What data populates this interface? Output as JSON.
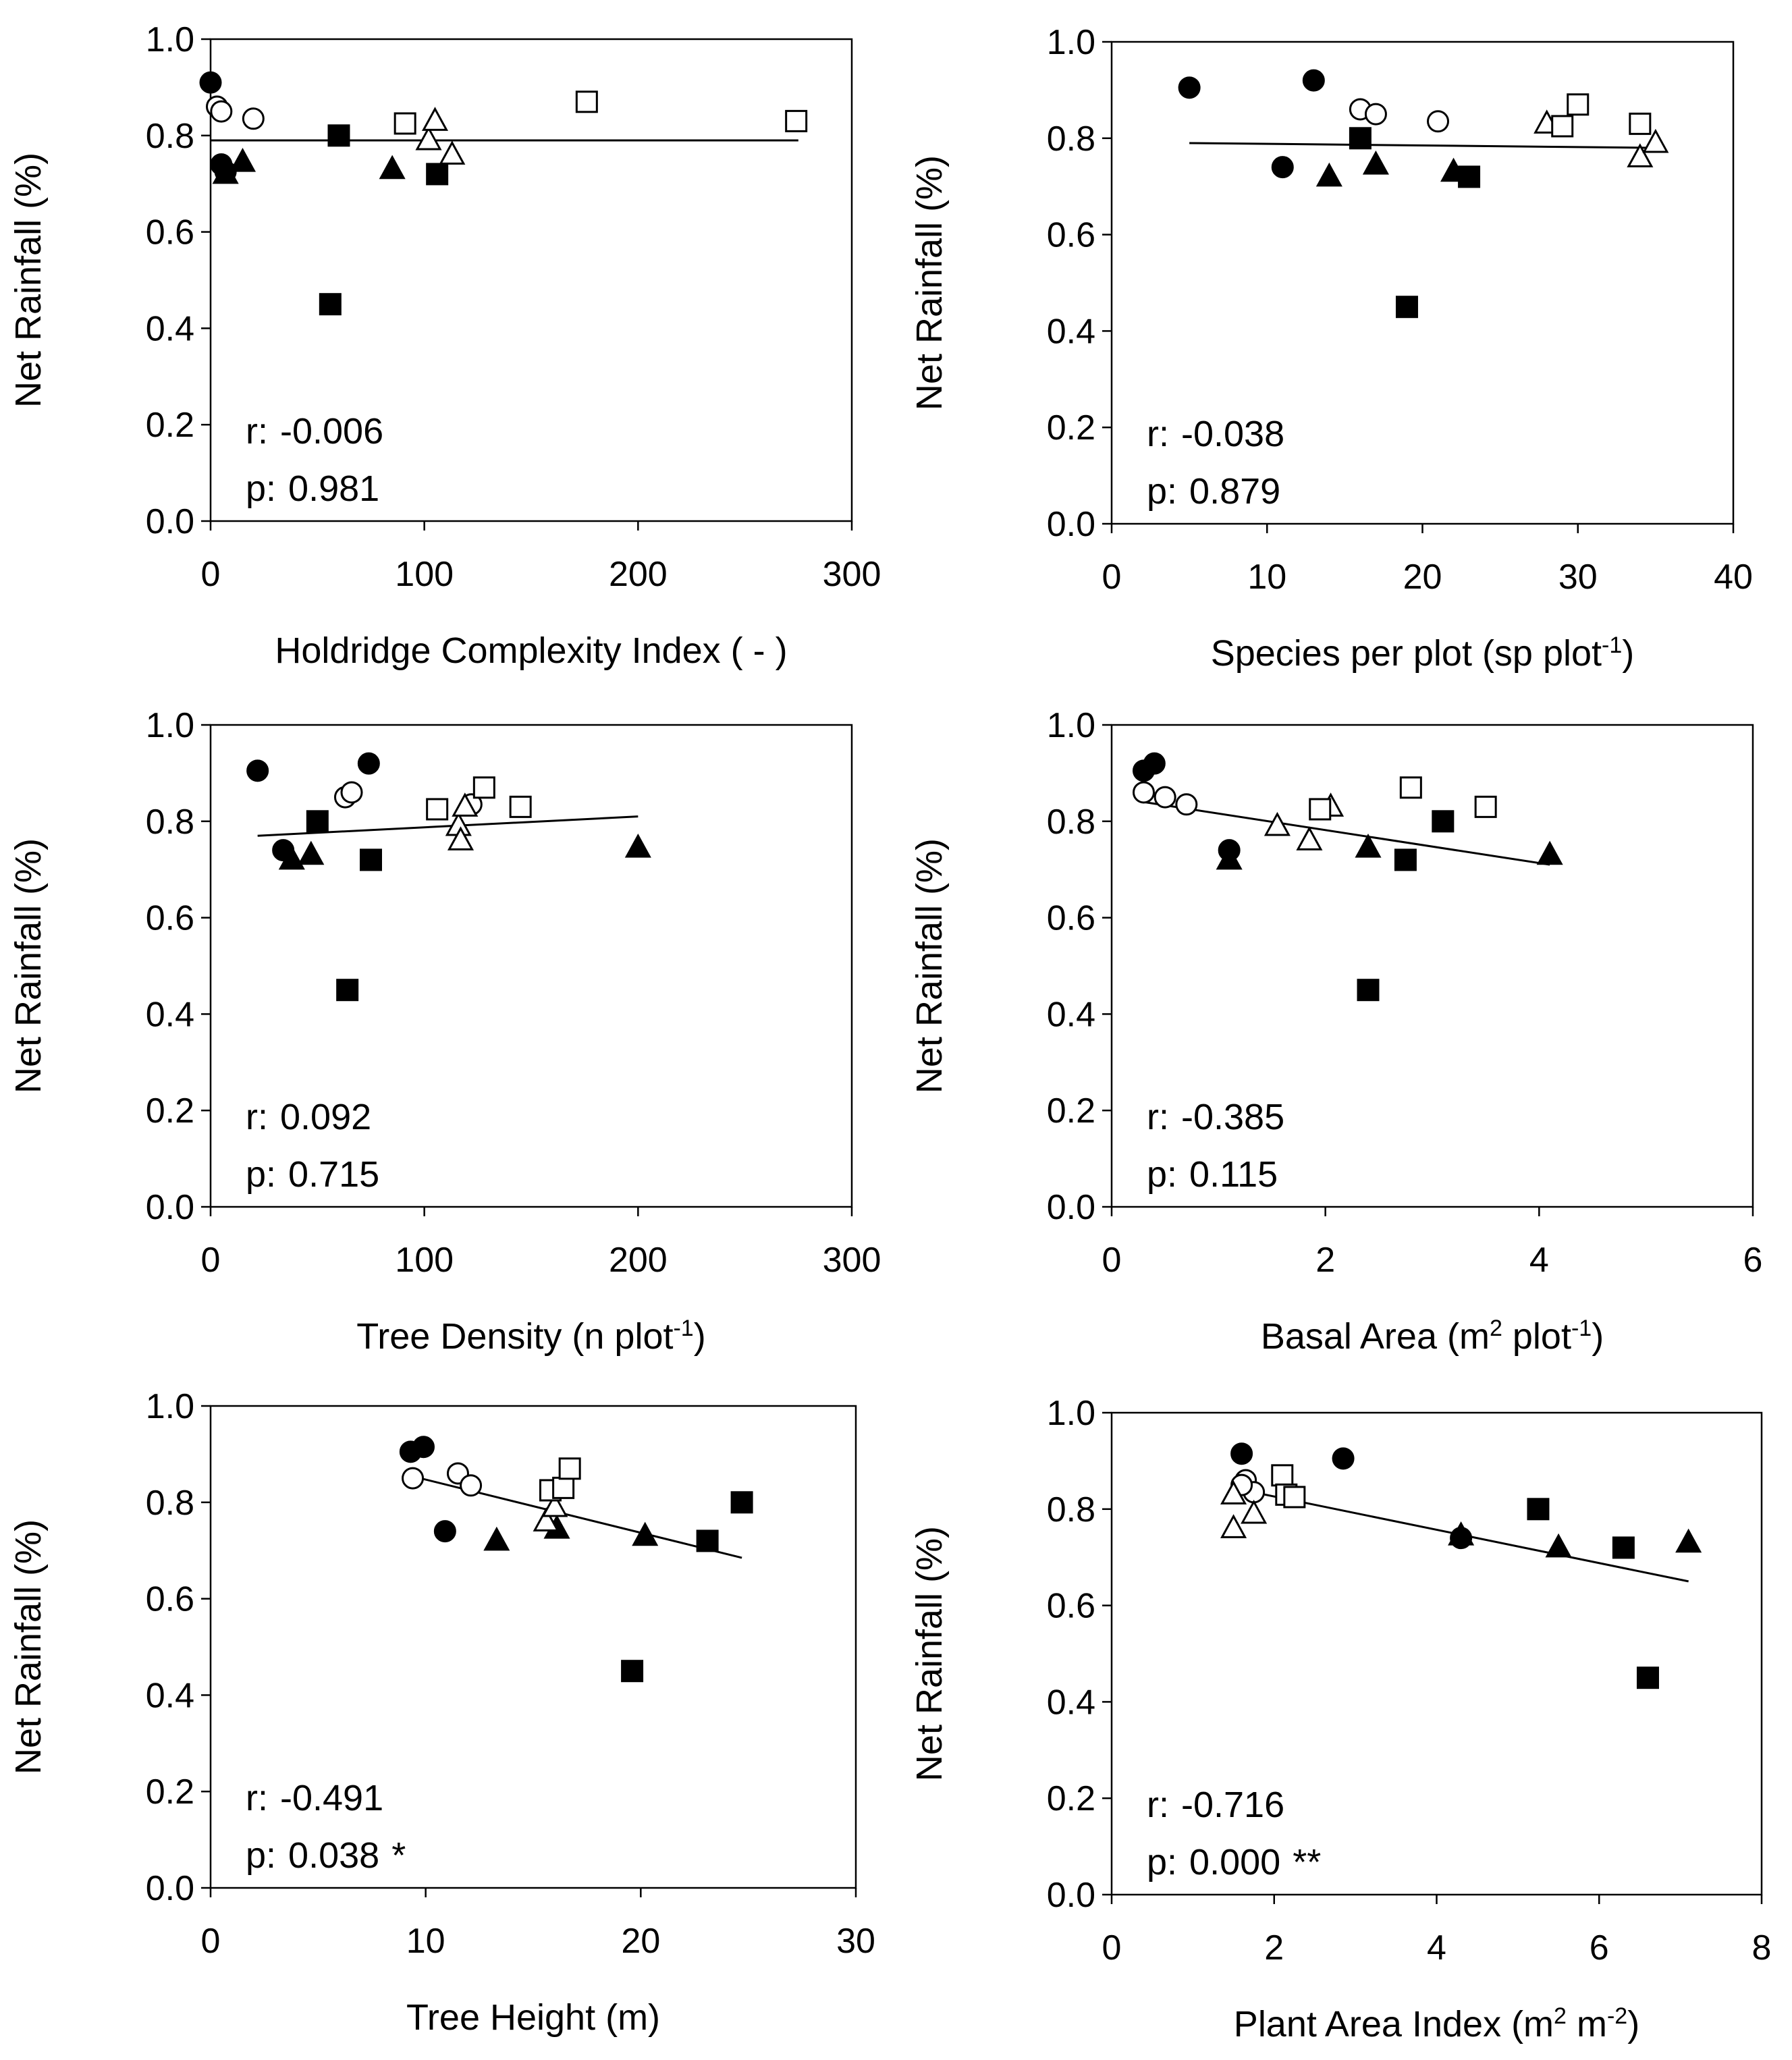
{
  "figure": {
    "y_axis_label": "Net Rainfall (%)",
    "y_ticks": [
      "0.0",
      "0.2",
      "0.4",
      "0.6",
      "0.8",
      "1.0"
    ]
  },
  "chart_data": [
    {
      "type": "scatter",
      "xlabel": "Holdridge Complexity Index ( - )",
      "ylabel": "Net Rainfall (%)",
      "xlim": [
        0,
        300
      ],
      "ylim": [
        0,
        1
      ],
      "x_ticks": [
        "0",
        "100",
        "200",
        "300"
      ],
      "r_label": "r:",
      "r_value": "-0.006",
      "p_label": "p:",
      "p_value": "0.981",
      "significance": "",
      "trend": {
        "x1": 0,
        "y1": 0.79,
        "x2": 275,
        "y2": 0.79
      },
      "series": [
        {
          "name": "filled circle",
          "marker": "circle",
          "fill": "filled",
          "points": [
            [
              0,
              0.91
            ],
            [
              5,
              0.74
            ],
            [
              7,
              0.725
            ]
          ]
        },
        {
          "name": "open circle",
          "marker": "circle",
          "fill": "open",
          "points": [
            [
              3,
              0.86
            ],
            [
              5,
              0.85
            ],
            [
              20,
              0.835
            ]
          ]
        },
        {
          "name": "filled triangle",
          "marker": "triangle",
          "fill": "filled",
          "points": [
            [
              7,
              0.72
            ],
            [
              15,
              0.745
            ],
            [
              85,
              0.73
            ]
          ]
        },
        {
          "name": "open triangle",
          "marker": "triangle",
          "fill": "open",
          "points": [
            [
              102,
              0.79
            ],
            [
              105,
              0.83
            ],
            [
              113,
              0.76
            ]
          ]
        },
        {
          "name": "filled square",
          "marker": "square",
          "fill": "filled",
          "points": [
            [
              56,
              0.45
            ],
            [
              60,
              0.8
            ],
            [
              106,
              0.72
            ]
          ]
        },
        {
          "name": "open square",
          "marker": "square",
          "fill": "open",
          "points": [
            [
              91,
              0.825
            ],
            [
              176,
              0.87
            ],
            [
              274,
              0.83
            ]
          ]
        }
      ]
    },
    {
      "type": "scatter",
      "xlabel": "Species per plot (sp plot",
      "xlabel_sup": "-1",
      "xlabel_end": ")",
      "ylabel": "Net Rainfall (%)",
      "xlim": [
        0,
        40
      ],
      "ylim": [
        0,
        1
      ],
      "x_ticks": [
        "0",
        "10",
        "20",
        "30",
        "40"
      ],
      "r_label": "r:",
      "r_value": "-0.038",
      "p_label": "p:",
      "p_value": "0.879",
      "significance": "",
      "trend": {
        "x1": 5,
        "y1": 0.79,
        "x2": 35,
        "y2": 0.78
      },
      "series": [
        {
          "name": "filled circle",
          "marker": "circle",
          "fill": "filled",
          "points": [
            [
              5,
              0.905
            ],
            [
              13,
              0.92
            ],
            [
              11,
              0.74
            ]
          ]
        },
        {
          "name": "open circle",
          "marker": "circle",
          "fill": "open",
          "points": [
            [
              16,
              0.86
            ],
            [
              17,
              0.85
            ],
            [
              21,
              0.835
            ]
          ]
        },
        {
          "name": "filled triangle",
          "marker": "triangle",
          "fill": "filled",
          "points": [
            [
              14,
              0.72
            ],
            [
              17,
              0.745
            ],
            [
              22,
              0.73
            ]
          ]
        },
        {
          "name": "open triangle",
          "marker": "triangle",
          "fill": "open",
          "points": [
            [
              28,
              0.83
            ],
            [
              34,
              0.76
            ],
            [
              35,
              0.79
            ]
          ]
        },
        {
          "name": "filled square",
          "marker": "square",
          "fill": "filled",
          "points": [
            [
              16,
              0.8
            ],
            [
              19,
              0.45
            ],
            [
              23,
              0.72
            ]
          ]
        },
        {
          "name": "open square",
          "marker": "square",
          "fill": "open",
          "points": [
            [
              29,
              0.825
            ],
            [
              30,
              0.87
            ],
            [
              34,
              0.83
            ]
          ]
        }
      ]
    },
    {
      "type": "scatter",
      "xlabel": "Tree Density (n plot",
      "xlabel_sup": "-1",
      "xlabel_end": ")",
      "ylabel": "Net Rainfall (%)",
      "xlim": [
        0,
        300
      ],
      "ylim": [
        0,
        1
      ],
      "x_ticks": [
        "0",
        "100",
        "200",
        "300"
      ],
      "r_label": "r:",
      "r_value": "0.092",
      "p_label": "p:",
      "p_value": "0.715",
      "significance": "",
      "trend": {
        "x1": 22,
        "y1": 0.77,
        "x2": 200,
        "y2": 0.81
      },
      "series": [
        {
          "name": "filled circle",
          "marker": "circle",
          "fill": "filled",
          "points": [
            [
              22,
              0.905
            ],
            [
              34,
              0.74
            ],
            [
              74,
              0.92
            ]
          ]
        },
        {
          "name": "open circle",
          "marker": "circle",
          "fill": "open",
          "points": [
            [
              63,
              0.85
            ],
            [
              66,
              0.86
            ],
            [
              122,
              0.835
            ]
          ]
        },
        {
          "name": "filled triangle",
          "marker": "triangle",
          "fill": "filled",
          "points": [
            [
              38,
              0.72
            ],
            [
              47,
              0.73
            ],
            [
              200,
              0.745
            ]
          ]
        },
        {
          "name": "open triangle",
          "marker": "triangle",
          "fill": "open",
          "points": [
            [
              116,
              0.79
            ],
            [
              117,
              0.76
            ],
            [
              119,
              0.83
            ]
          ]
        },
        {
          "name": "filled square",
          "marker": "square",
          "fill": "filled",
          "points": [
            [
              50,
              0.8
            ],
            [
              64,
              0.45
            ],
            [
              75,
              0.72
            ]
          ]
        },
        {
          "name": "open square",
          "marker": "square",
          "fill": "open",
          "points": [
            [
              106,
              0.825
            ],
            [
              128,
              0.87
            ],
            [
              145,
              0.83
            ]
          ]
        }
      ]
    },
    {
      "type": "scatter",
      "xlabel": "Basal Area (m",
      "xlabel_sup": "2",
      "xlabel_mid": " plot",
      "xlabel_sup2": "-1",
      "xlabel_end": ")",
      "ylabel": "Net Rainfall (%)",
      "xlim": [
        0,
        6
      ],
      "ylim": [
        0,
        1
      ],
      "x_ticks": [
        "0",
        "2",
        "4",
        "6"
      ],
      "r_label": "r:",
      "r_value": "-0.385",
      "p_label": "p:",
      "p_value": "0.115",
      "significance": "",
      "trend": {
        "x1": 0.3,
        "y1": 0.84,
        "x2": 4.1,
        "y2": 0.71
      },
      "series": [
        {
          "name": "filled circle",
          "marker": "circle",
          "fill": "filled",
          "points": [
            [
              0.3,
              0.905
            ],
            [
              0.4,
              0.92
            ],
            [
              1.1,
              0.74
            ]
          ]
        },
        {
          "name": "open circle",
          "marker": "circle",
          "fill": "open",
          "points": [
            [
              0.3,
              0.86
            ],
            [
              0.5,
              0.85
            ],
            [
              0.7,
              0.835
            ]
          ]
        },
        {
          "name": "filled triangle",
          "marker": "triangle",
          "fill": "filled",
          "points": [
            [
              1.1,
              0.72
            ],
            [
              2.4,
              0.745
            ],
            [
              4.1,
              0.73
            ]
          ]
        },
        {
          "name": "open triangle",
          "marker": "triangle",
          "fill": "open",
          "points": [
            [
              1.55,
              0.79
            ],
            [
              1.85,
              0.76
            ],
            [
              2.05,
              0.83
            ]
          ]
        },
        {
          "name": "filled square",
          "marker": "square",
          "fill": "filled",
          "points": [
            [
              2.4,
              0.45
            ],
            [
              2.75,
              0.72
            ],
            [
              3.1,
              0.8
            ]
          ]
        },
        {
          "name": "open square",
          "marker": "square",
          "fill": "open",
          "points": [
            [
              1.95,
              0.825
            ],
            [
              2.8,
              0.87
            ],
            [
              3.5,
              0.83
            ]
          ]
        }
      ]
    },
    {
      "type": "scatter",
      "xlabel": "Tree Height (m)",
      "ylabel": "Net Rainfall (%)",
      "xlim": [
        0,
        30
      ],
      "ylim": [
        0,
        1
      ],
      "x_ticks": [
        "0",
        "10",
        "20",
        "30"
      ],
      "r_label": "r:",
      "r_value": "-0.491",
      "p_label": "p:",
      "p_value": "0.038",
      "significance": "*",
      "trend": {
        "x1": 9.3,
        "y1": 0.855,
        "x2": 24.7,
        "y2": 0.685
      },
      "series": [
        {
          "name": "filled circle",
          "marker": "circle",
          "fill": "filled",
          "points": [
            [
              9.3,
              0.905
            ],
            [
              9.9,
              0.915
            ],
            [
              10.9,
              0.74
            ]
          ]
        },
        {
          "name": "open circle",
          "marker": "circle",
          "fill": "open",
          "points": [
            [
              9.4,
              0.85
            ],
            [
              11.5,
              0.86
            ],
            [
              12.1,
              0.835
            ]
          ]
        },
        {
          "name": "filled triangle",
          "marker": "triangle",
          "fill": "filled",
          "points": [
            [
              13.3,
              0.72
            ],
            [
              16.1,
              0.745
            ],
            [
              20.2,
              0.73
            ]
          ]
        },
        {
          "name": "open triangle",
          "marker": "triangle",
          "fill": "open",
          "points": [
            [
              15.6,
              0.76
            ],
            [
              16.0,
              0.79
            ],
            [
              16.3,
              0.83
            ]
          ]
        },
        {
          "name": "filled square",
          "marker": "square",
          "fill": "filled",
          "points": [
            [
              19.6,
              0.45
            ],
            [
              23.1,
              0.72
            ],
            [
              24.7,
              0.8
            ]
          ]
        },
        {
          "name": "open square",
          "marker": "square",
          "fill": "open",
          "points": [
            [
              15.8,
              0.825
            ],
            [
              16.4,
              0.83
            ],
            [
              16.7,
              0.87
            ]
          ]
        }
      ]
    },
    {
      "type": "scatter",
      "xlabel": "Plant Area Index (m",
      "xlabel_sup": "2",
      "xlabel_mid": " m",
      "xlabel_sup2": "-2",
      "xlabel_end": ")",
      "ylabel": "Net Rainfall (%)",
      "xlim": [
        0,
        8
      ],
      "ylim": [
        0,
        1
      ],
      "x_ticks": [
        "0",
        "2",
        "4",
        "6",
        "8"
      ],
      "r_label": "r:",
      "r_value": "-0.716",
      "p_label": "p:",
      "p_value": "0.000",
      "significance": "**",
      "trend": {
        "x1": 1.6,
        "y1": 0.84,
        "x2": 7.1,
        "y2": 0.65
      },
      "series": [
        {
          "name": "filled circle",
          "marker": "circle",
          "fill": "filled",
          "points": [
            [
              1.6,
              0.915
            ],
            [
              2.85,
              0.905
            ],
            [
              4.3,
              0.74
            ]
          ]
        },
        {
          "name": "open circle",
          "marker": "circle",
          "fill": "open",
          "points": [
            [
              1.65,
              0.86
            ],
            [
              1.75,
              0.835
            ],
            [
              1.6,
              0.85
            ]
          ]
        },
        {
          "name": "filled triangle",
          "marker": "triangle",
          "fill": "filled",
          "points": [
            [
              4.3,
              0.745
            ],
            [
              5.5,
              0.72
            ],
            [
              7.1,
              0.73
            ]
          ]
        },
        {
          "name": "open triangle",
          "marker": "triangle",
          "fill": "open",
          "points": [
            [
              1.5,
              0.83
            ],
            [
              1.5,
              0.76
            ],
            [
              1.75,
              0.79
            ]
          ]
        },
        {
          "name": "filled square",
          "marker": "square",
          "fill": "filled",
          "points": [
            [
              5.25,
              0.8
            ],
            [
              6.3,
              0.72
            ],
            [
              6.6,
              0.45
            ]
          ]
        },
        {
          "name": "open square",
          "marker": "square",
          "fill": "open",
          "points": [
            [
              2.1,
              0.87
            ],
            [
              2.15,
              0.83
            ],
            [
              2.25,
              0.825
            ]
          ]
        }
      ]
    }
  ]
}
